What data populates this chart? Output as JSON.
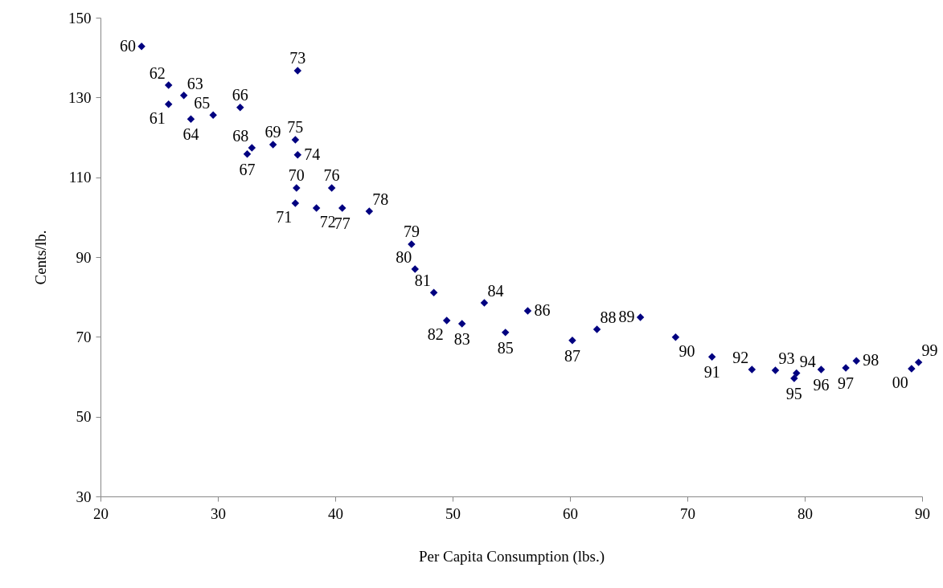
{
  "chart_data": {
    "type": "scatter",
    "xlabel": "Per Capita Consumption (lbs.)",
    "ylabel": "Cents/lb.",
    "x": [
      23.5,
      25.8,
      25.8,
      27.1,
      27.7,
      29.6,
      31.9,
      32.5,
      32.9,
      34.7,
      36.7,
      36.6,
      38.4,
      36.8,
      36.8,
      36.6,
      39.7,
      40.6,
      42.9,
      46.5,
      46.8,
      48.4,
      49.5,
      50.8,
      52.7,
      54.5,
      56.4,
      60.2,
      62.3,
      66.0,
      69.0,
      72.1,
      75.5,
      77.5,
      79.3,
      79.1,
      81.4,
      83.5,
      84.4,
      89.7,
      89.1
    ],
    "values": [
      142.8,
      128.3,
      133.1,
      130.5,
      124.6,
      125.6,
      127.5,
      115.8,
      117.4,
      118.2,
      107.3,
      103.5,
      102.3,
      136.7,
      115.6,
      119.4,
      107.3,
      102.3,
      101.5,
      93.2,
      87.0,
      81.1,
      74.1,
      73.3,
      78.5,
      71.1,
      76.5,
      69.1,
      71.9,
      74.9,
      69.9,
      65.0,
      61.8,
      61.6,
      60.9,
      59.6,
      61.8,
      62.2,
      64.0,
      63.6,
      62.0
    ],
    "annotations": [
      {
        "text": "60",
        "x": 23.5,
        "y": 142.8
      },
      {
        "text": "61",
        "x": 25.8,
        "y": 128.3
      },
      {
        "text": "62",
        "x": 25.8,
        "y": 133.1
      },
      {
        "text": "63",
        "x": 27.1,
        "y": 130.5
      },
      {
        "text": "64",
        "x": 27.7,
        "y": 124.6
      },
      {
        "text": "65",
        "x": 29.6,
        "y": 125.6
      },
      {
        "text": "66",
        "x": 31.9,
        "y": 127.5
      },
      {
        "text": "67",
        "x": 32.5,
        "y": 115.8
      },
      {
        "text": "68",
        "x": 32.9,
        "y": 117.4
      },
      {
        "text": "69",
        "x": 34.7,
        "y": 118.2
      },
      {
        "text": "70",
        "x": 36.7,
        "y": 107.3
      },
      {
        "text": "71",
        "x": 36.6,
        "y": 103.5
      },
      {
        "text": "72",
        "x": 38.4,
        "y": 102.3
      },
      {
        "text": "73",
        "x": 36.8,
        "y": 136.7
      },
      {
        "text": "74",
        "x": 36.8,
        "y": 115.6
      },
      {
        "text": "75",
        "x": 36.6,
        "y": 119.4
      },
      {
        "text": "76",
        "x": 39.7,
        "y": 107.3
      },
      {
        "text": "77",
        "x": 40.6,
        "y": 102.3
      },
      {
        "text": "78",
        "x": 42.9,
        "y": 101.5
      },
      {
        "text": "79",
        "x": 46.5,
        "y": 93.2
      },
      {
        "text": "80",
        "x": 46.8,
        "y": 87.0
      },
      {
        "text": "81",
        "x": 48.4,
        "y": 81.1
      },
      {
        "text": "82",
        "x": 49.5,
        "y": 74.1
      },
      {
        "text": "83",
        "x": 50.8,
        "y": 73.3
      },
      {
        "text": "84",
        "x": 52.7,
        "y": 78.5
      },
      {
        "text": "85",
        "x": 54.5,
        "y": 71.1
      },
      {
        "text": "86",
        "x": 56.4,
        "y": 76.5
      },
      {
        "text": "87",
        "x": 60.2,
        "y": 69.1
      },
      {
        "text": "88",
        "x": 62.3,
        "y": 71.9
      },
      {
        "text": "89",
        "x": 66.0,
        "y": 74.9
      },
      {
        "text": "90",
        "x": 69.0,
        "y": 69.9
      },
      {
        "text": "91",
        "x": 72.1,
        "y": 65.0
      },
      {
        "text": "92",
        "x": 75.5,
        "y": 61.8
      },
      {
        "text": "93",
        "x": 77.5,
        "y": 61.6
      },
      {
        "text": "94",
        "x": 79.3,
        "y": 60.9
      },
      {
        "text": "95",
        "x": 79.1,
        "y": 59.6
      },
      {
        "text": "96",
        "x": 81.4,
        "y": 61.8
      },
      {
        "text": "97",
        "x": 83.5,
        "y": 62.2
      },
      {
        "text": "98",
        "x": 84.4,
        "y": 64.0
      },
      {
        "text": "99",
        "x": 89.7,
        "y": 63.6
      },
      {
        "text": "00",
        "x": 89.1,
        "y": 62.0
      }
    ],
    "color": "#000080",
    "marker": "diamond",
    "grid": false,
    "xlim": [
      20,
      90
    ],
    "xticks": [
      20,
      30,
      40,
      50,
      60,
      70,
      80,
      90
    ],
    "ylim": [
      30,
      150
    ],
    "yticks": [
      30,
      50,
      70,
      90,
      110,
      130,
      150
    ]
  }
}
